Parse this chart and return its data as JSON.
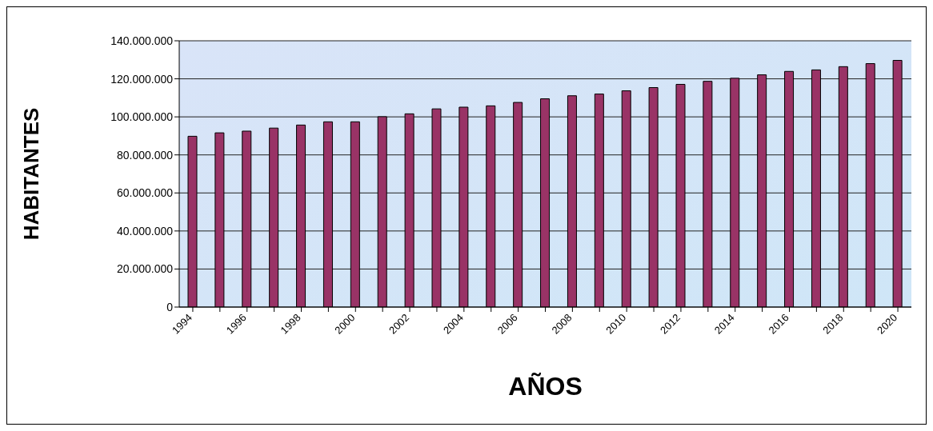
{
  "chart_data": {
    "type": "bar",
    "xlabel": "AÑOS",
    "ylabel": "HABITANTES",
    "categories": [
      "1994",
      null,
      "1996",
      null,
      "1998",
      null,
      "2000",
      null,
      "2002",
      null,
      "2004",
      null,
      "2006",
      null,
      "2008",
      null,
      "2010",
      null,
      "2012",
      null,
      "2014",
      null,
      "2016",
      null,
      "2018",
      null,
      "2020"
    ],
    "values": [
      89800000,
      91600000,
      92500000,
      94100000,
      95700000,
      97400000,
      97400000,
      100100000,
      101600000,
      104200000,
      105100000,
      105800000,
      107600000,
      109500000,
      111100000,
      112000000,
      113700000,
      115400000,
      117100000,
      118700000,
      120300000,
      122100000,
      123900000,
      124700000,
      126400000,
      128000000,
      129700000
    ],
    "color": "#993366",
    "ylim": [
      0,
      140000000
    ],
    "yticks": [
      {
        "value": 0,
        "label": "0"
      },
      {
        "value": 20000000,
        "label": "20.000.000"
      },
      {
        "value": 40000000,
        "label": "40.000.000"
      },
      {
        "value": 60000000,
        "label": "60.000.000"
      },
      {
        "value": 80000000,
        "label": "80.000.000"
      },
      {
        "value": 100000000,
        "label": "100.000.000"
      },
      {
        "value": 120000000,
        "label": "120.000.000"
      },
      {
        "value": 140000000,
        "label": "140.000.000"
      }
    ],
    "grid": "y"
  }
}
